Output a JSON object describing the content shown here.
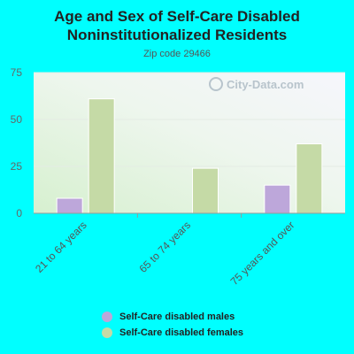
{
  "chart_data": {
    "type": "bar",
    "title": "Age and Sex of Self-Care Disabled Noninstitutionalized Residents",
    "subtitle": "Zip code 29466",
    "categories": [
      "21 to 64 years",
      "65 to 74 years",
      "75 years and over"
    ],
    "series": [
      {
        "name": "Self-Care disabled males",
        "values": [
          8,
          0,
          15
        ],
        "color": "#bda7da"
      },
      {
        "name": "Self-Care disabled females",
        "values": [
          61,
          24,
          37
        ],
        "color": "#c5daa6"
      }
    ],
    "ylim": [
      0,
      75
    ],
    "yticks": [
      "0",
      "25",
      "50",
      "75"
    ],
    "grid": true,
    "legend_position": "bottom",
    "watermark": "City-Data.com"
  }
}
